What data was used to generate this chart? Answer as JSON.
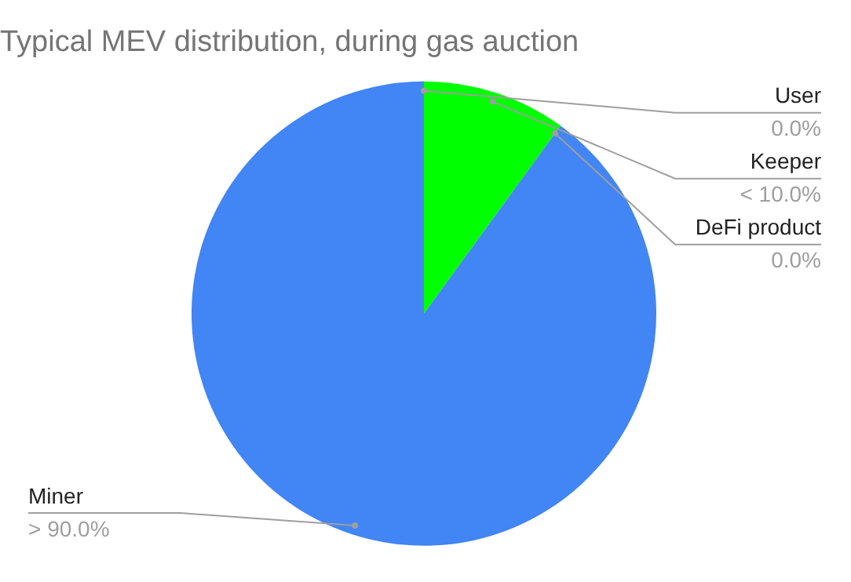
{
  "chart_data": {
    "type": "pie",
    "title": "Typical MEV distribution, during gas auction",
    "categories": [
      "User",
      "Keeper",
      "DeFi product",
      "Miner"
    ],
    "values": [
      0,
      10,
      0,
      90
    ],
    "colors": [
      "#ea4335",
      "#00ff00",
      "#fbbc04",
      "#4285f4"
    ],
    "value_labels": [
      "0.0%",
      "< 10.0%",
      "0.0%",
      "> 90.0%"
    ],
    "legend": false
  }
}
